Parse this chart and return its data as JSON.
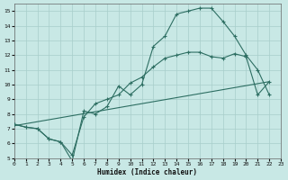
{
  "xlabel": "Humidex (Indice chaleur)",
  "xlim": [
    0,
    23
  ],
  "ylim": [
    5,
    15.5
  ],
  "yticks": [
    5,
    6,
    7,
    8,
    9,
    10,
    11,
    12,
    13,
    14,
    15
  ],
  "xticks": [
    0,
    1,
    2,
    3,
    4,
    5,
    6,
    7,
    8,
    9,
    10,
    11,
    12,
    13,
    14,
    15,
    16,
    17,
    18,
    19,
    20,
    21,
    22,
    23
  ],
  "bg_color": "#c8e8e5",
  "grid_color": "#a8ceca",
  "line_color": "#2d6e62",
  "curve1_x": [
    0,
    1,
    2,
    3,
    4,
    5,
    6,
    7,
    8,
    9,
    10,
    11,
    12,
    13,
    14,
    15,
    16,
    17,
    18,
    19,
    20,
    21,
    22
  ],
  "curve1_y": [
    7.3,
    7.1,
    7.0,
    6.3,
    6.1,
    4.8,
    8.2,
    8.0,
    8.5,
    9.9,
    9.3,
    10.0,
    12.6,
    13.3,
    14.8,
    15.0,
    15.2,
    15.2,
    14.3,
    13.3,
    12.0,
    11.0,
    9.3
  ],
  "curve2_x": [
    0,
    1,
    2,
    3,
    4,
    5,
    6,
    7,
    8,
    9,
    10,
    11,
    12,
    13,
    14,
    15,
    16,
    17,
    18,
    19,
    20,
    21,
    22
  ],
  "curve2_y": [
    7.3,
    7.1,
    7.0,
    6.3,
    6.1,
    5.2,
    7.8,
    8.7,
    9.0,
    9.3,
    10.1,
    10.5,
    11.2,
    11.8,
    12.0,
    12.2,
    12.2,
    11.9,
    11.8,
    12.1,
    11.9,
    9.3,
    10.2
  ],
  "line3_x": [
    0,
    22
  ],
  "line3_y": [
    7.2,
    10.2
  ],
  "tick_fontsize": 4.5,
  "xlabel_fontsize": 5.5
}
